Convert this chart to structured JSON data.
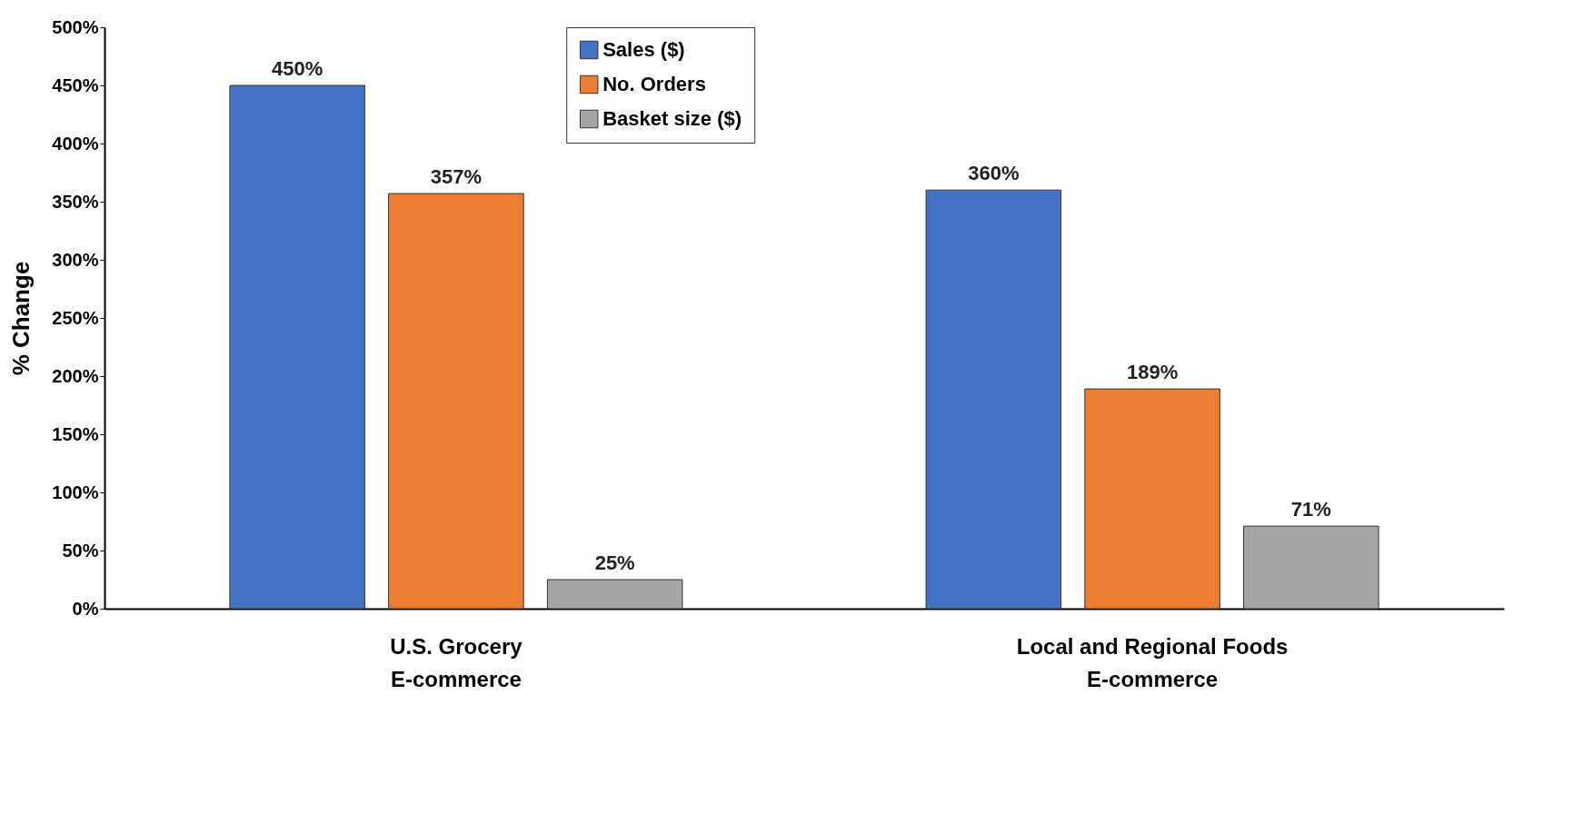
{
  "chart_data": {
    "type": "bar",
    "ylabel": "% Change",
    "categories": [
      "U.S. Grocery E-commerce",
      "Local and Regional Foods E-commerce"
    ],
    "series": [
      {
        "name": "Sales ($)",
        "color": "#4472c4",
        "values": [
          450,
          360
        ],
        "value_labels": [
          "450%",
          "360%"
        ]
      },
      {
        "name": "No. Orders",
        "color": "#ed7d31",
        "values": [
          357,
          189
        ],
        "value_labels": [
          "357%",
          "189%"
        ]
      },
      {
        "name": "Basket size ($)",
        "color": "#a5a5a5",
        "values": [
          25,
          71
        ],
        "value_labels": [
          "25%",
          "71%"
        ]
      }
    ],
    "ylim": [
      0,
      500
    ],
    "yticks": [
      {
        "value": 0,
        "label": "0%"
      },
      {
        "value": 50,
        "label": "50%"
      },
      {
        "value": 100,
        "label": "100%"
      },
      {
        "value": 150,
        "label": "150%"
      },
      {
        "value": 200,
        "label": "200%"
      },
      {
        "value": 250,
        "label": "250%"
      },
      {
        "value": 300,
        "label": "300%"
      },
      {
        "value": 350,
        "label": "350%"
      },
      {
        "value": 400,
        "label": "400%"
      },
      {
        "value": 450,
        "label": "450%"
      },
      {
        "value": 500,
        "label": "500%"
      }
    ],
    "grid": false,
    "legend": "top"
  }
}
